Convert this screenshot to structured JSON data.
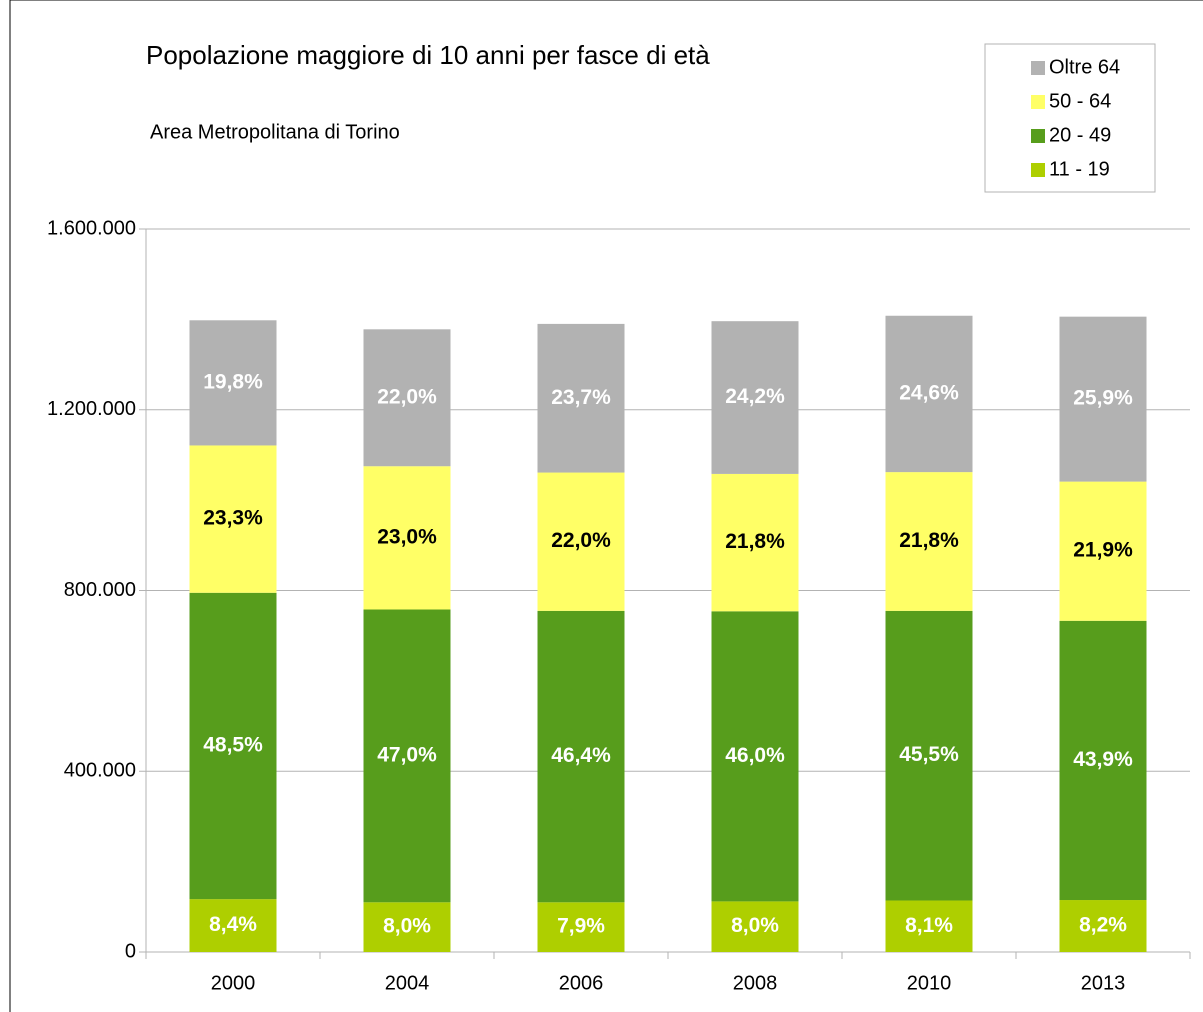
{
  "chart_data": {
    "type": "stacked_bar",
    "title": "Popolazione maggiore di 10 anni per fasce di età",
    "subtitle": "Area Metropolitana di Torino",
    "categories": [
      "2000",
      "2004",
      "2006",
      "2008",
      "2010",
      "2013"
    ],
    "series": [
      {
        "name": "11 - 19",
        "color": "#aecf00",
        "label_color": "#ffffff",
        "values": [
          117000,
          110000,
          110000,
          112000,
          114000,
          115000
        ],
        "shares": [
          8.4,
          8.0,
          7.9,
          8.0,
          8.1,
          8.2
        ],
        "share_labels": [
          "8,4%",
          "8,0%",
          "7,9%",
          "8,0%",
          "8,1%",
          "8,2%"
        ]
      },
      {
        "name": "20 - 49",
        "color": "#579d1c",
        "label_color": "#ffffff",
        "values": [
          678000,
          648000,
          645000,
          642000,
          641000,
          618000
        ],
        "shares": [
          48.5,
          47.0,
          46.4,
          46.0,
          45.5,
          43.9
        ],
        "share_labels": [
          "48,5%",
          "47,0%",
          "46,4%",
          "46,0%",
          "45,5%",
          "43,9%"
        ]
      },
      {
        "name": "50 - 64",
        "color": "#ffff66",
        "label_color": "#000000",
        "values": [
          326000,
          317000,
          306000,
          304000,
          307000,
          308000
        ],
        "shares": [
          23.3,
          23.0,
          22.0,
          21.8,
          21.8,
          21.9
        ],
        "share_labels": [
          "23,3%",
          "23,0%",
          "22,0%",
          "21,8%",
          "21,8%",
          "21,9%"
        ]
      },
      {
        "name": "Oltre 64",
        "color": "#b2b2b2",
        "label_color": "#ffffff",
        "values": [
          277000,
          303000,
          329000,
          338000,
          346000,
          365000
        ],
        "shares": [
          19.8,
          22.0,
          23.7,
          24.2,
          24.6,
          25.9
        ],
        "share_labels": [
          "19,8%",
          "22,0%",
          "23,7%",
          "24,2%",
          "24,6%",
          "25,9%"
        ]
      }
    ],
    "ylim": [
      0,
      1600000
    ],
    "yticks": [
      0,
      {
        "value": 400000,
        "label": "400.000"
      },
      {
        "value": 800000,
        "label": "800.000"
      },
      {
        "value": 1200000,
        "label": "1.200.000"
      },
      {
        "value": 1600000,
        "label": "1.600.000"
      }
    ],
    "grid": true,
    "legend": "top-right"
  }
}
